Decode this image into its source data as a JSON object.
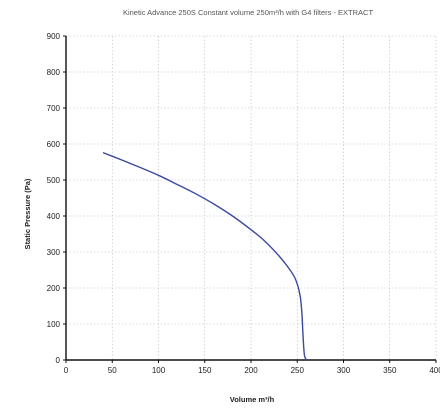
{
  "chart_data": {
    "type": "line",
    "title": "Kinetic Advance 250S   Constant volume 250m³/h with G4 filters - EXTRACT",
    "xlabel": "Volume m³/h",
    "ylabel": "Static Pressure (Pa)",
    "xlim": [
      0,
      400
    ],
    "ylim": [
      0,
      900
    ],
    "xticks": [
      "0",
      "50",
      "100",
      "150",
      "200",
      "250",
      "300",
      "350",
      "400"
    ],
    "yticks": [
      "0",
      "100",
      "200",
      "300",
      "400",
      "500",
      "600",
      "700",
      "800",
      "900"
    ],
    "grid": true,
    "series": [
      {
        "color": "#3b4a9c",
        "x": [
          40,
          60,
          80,
          100,
          120,
          140,
          160,
          180,
          200,
          215,
          230,
          240,
          248,
          253,
          255,
          256,
          257,
          258,
          260
        ],
        "y": [
          576,
          556,
          535,
          513,
          488,
          462,
          433,
          400,
          362,
          330,
          290,
          258,
          225,
          180,
          130,
          80,
          35,
          10,
          0
        ]
      }
    ]
  }
}
